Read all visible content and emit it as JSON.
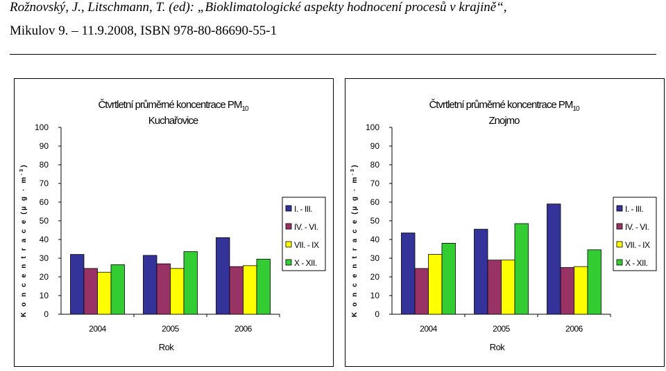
{
  "header": {
    "line1": "Rožnovský, J., Litschmann, T. (ed): „Bioklimatologické aspekty hodnocení procesů v krajině“,",
    "line2": "Mikulov 9. – 11.9.2008, ISBN 978-80-86690-55-1"
  },
  "colors": {
    "I. - III.": "#333399",
    "IV. - VI.": "#993366",
    "VII. - IX": "#ffff00",
    "X - XII.": "#33cc33"
  },
  "chart_data": [
    {
      "type": "bar",
      "title": "Čtvrtletní průměrné koncentrace PM",
      "title_sub": "10",
      "subtitle": "Kuchařovice",
      "xlabel": "Rok",
      "ylabel": "K o n c e n t r a c e   (µ g · m",
      "ylabel_sup": "-3",
      "ylabel_close": ")",
      "categories": [
        "2004",
        "2005",
        "2006"
      ],
      "ylim": [
        0,
        100
      ],
      "yticks": [
        "0",
        "10",
        "20",
        "30",
        "40",
        "50",
        "60",
        "70",
        "80",
        "90",
        "100"
      ],
      "legend_position": "right",
      "series": [
        {
          "name": "I. - III.",
          "values": [
            32,
            31.5,
            41
          ]
        },
        {
          "name": "IV. - VI.",
          "values": [
            24.5,
            27,
            25.5
          ]
        },
        {
          "name": "VII. - IX",
          "values": [
            22.5,
            24.5,
            26
          ]
        },
        {
          "name": "X - XII.",
          "values": [
            26.5,
            33.5,
            29.5
          ]
        }
      ]
    },
    {
      "type": "bar",
      "title": "Čtvrtletní průměrné koncentrace PM",
      "title_sub": "10",
      "subtitle": "Znojmo",
      "xlabel": "Rok",
      "ylabel": "K o n c e n t r a c e   (µ g · m",
      "ylabel_sup": "-3",
      "ylabel_close": ")",
      "categories": [
        "2004",
        "2005",
        "2006"
      ],
      "ylim": [
        0,
        100
      ],
      "yticks": [
        "0",
        "10",
        "20",
        "30",
        "40",
        "50",
        "60",
        "70",
        "80",
        "90",
        "100"
      ],
      "legend_position": "right",
      "series": [
        {
          "name": "I. - III.",
          "values": [
            43.5,
            45.5,
            59
          ]
        },
        {
          "name": "IV. - VI.",
          "values": [
            24.5,
            29,
            25
          ]
        },
        {
          "name": "VII. - IX",
          "values": [
            32,
            29,
            25.5
          ]
        },
        {
          "name": "X - XII.",
          "values": [
            38,
            48.5,
            34.5
          ]
        }
      ]
    }
  ]
}
